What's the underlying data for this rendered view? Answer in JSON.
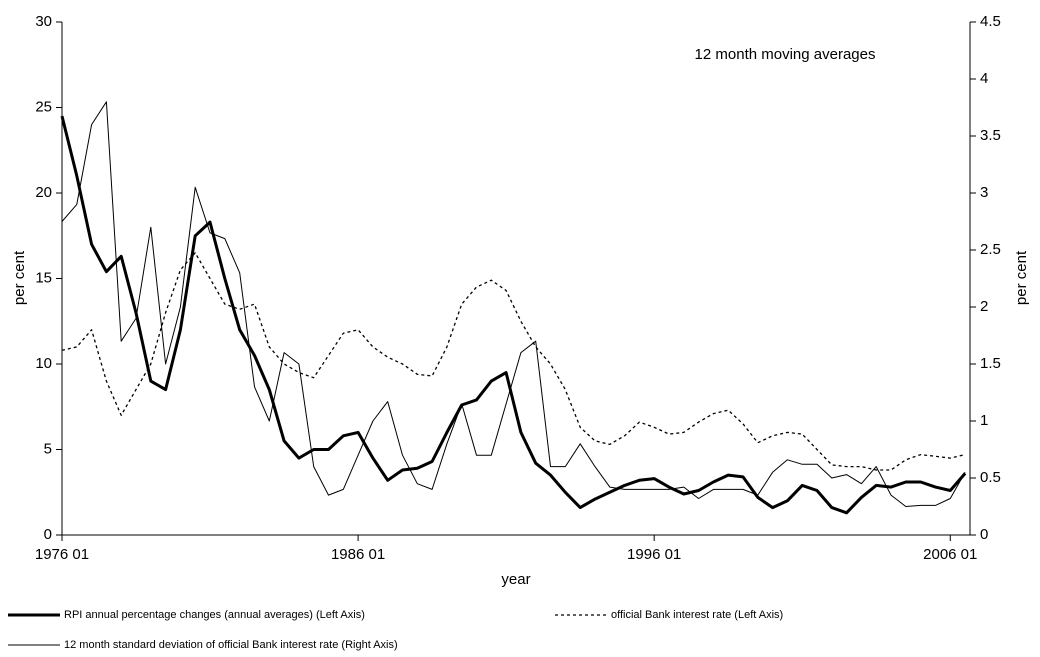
{
  "chart_data": {
    "type": "line",
    "annotation": "12 month moving averages",
    "xlabel": "year",
    "ylabel": "per cent",
    "y2label": "per cent",
    "x": [
      "1976 01",
      "1976 07",
      "1977 01",
      "1977 07",
      "1978 01",
      "1978 07",
      "1979 01",
      "1979 07",
      "1980 01",
      "1980 07",
      "1981 01",
      "1981 07",
      "1982 01",
      "1982 07",
      "1983 01",
      "1983 07",
      "1984 01",
      "1984 07",
      "1985 01",
      "1985 07",
      "1986 01",
      "1986 07",
      "1987 01",
      "1987 07",
      "1988 01",
      "1988 07",
      "1989 01",
      "1989 07",
      "1990 01",
      "1990 07",
      "1991 01",
      "1991 07",
      "1992 01",
      "1992 07",
      "1993 01",
      "1993 07",
      "1994 01",
      "1994 07",
      "1995 01",
      "1995 07",
      "1996 01",
      "1996 07",
      "1997 01",
      "1997 07",
      "1998 01",
      "1998 07",
      "1999 01",
      "1999 07",
      "2000 01",
      "2000 07",
      "2001 01",
      "2001 07",
      "2002 01",
      "2002 07",
      "2003 01",
      "2003 07",
      "2004 01",
      "2004 07",
      "2005 01",
      "2005 07",
      "2006 01",
      "2006 07"
    ],
    "xlim": [
      "1976 01",
      "2006 09"
    ],
    "xticks": [
      "1976 01",
      "1986 01",
      "1996 01",
      "2006 01"
    ],
    "ylim": [
      0,
      30
    ],
    "yticks": [
      0,
      5,
      10,
      15,
      20,
      25,
      30
    ],
    "y2lim": [
      0,
      4.5
    ],
    "y2ticks": [
      0,
      0.5,
      1,
      1.5,
      2,
      2.5,
      3,
      3.5,
      4,
      4.5
    ],
    "series": [
      {
        "name": "RPI annual percentage changes (annual averages) (Left Axis)",
        "color": "#000000",
        "style": "solid",
        "width": 3,
        "values": [
          24.5,
          21,
          17,
          15.4,
          16.3,
          13,
          9,
          8.5,
          12,
          17.5,
          18.3,
          15,
          12,
          10.5,
          8.5,
          5.5,
          4.5,
          5,
          5,
          5.8,
          6,
          4.5,
          3.2,
          3.8,
          3.9,
          4.3,
          6,
          7.6,
          7.9,
          9,
          9.5,
          6,
          4.2,
          3.5,
          2.5,
          1.6,
          2.1,
          2.5,
          2.9,
          3.2,
          3.3,
          2.8,
          2.4,
          2.6,
          3.1,
          3.5,
          3.4,
          2.2,
          1.6,
          2,
          2.9,
          2.6,
          1.6,
          1.3,
          2.2,
          2.9,
          2.8,
          3.1,
          3.1,
          2.8,
          2.6,
          3.6
        ]
      },
      {
        "name": "official Bank interest rate (Left Axis)",
        "color": "#000000",
        "style": "dotted",
        "width": 1.3,
        "values": [
          10.8,
          11,
          12,
          9,
          7,
          8.5,
          10,
          13,
          15.5,
          16.5,
          15,
          13.5,
          13.2,
          13.5,
          11,
          10,
          9.5,
          9.2,
          10.5,
          11.8,
          12,
          11,
          10.4,
          10,
          9.4,
          9.3,
          11,
          13.5,
          14.5,
          14.9,
          14.3,
          12.5,
          11,
          10,
          8.5,
          6.3,
          5.5,
          5.3,
          5.8,
          6.6,
          6.3,
          5.9,
          6,
          6.6,
          7.1,
          7.3,
          6.5,
          5.4,
          5.8,
          6,
          5.9,
          5,
          4.1,
          4,
          4,
          3.8,
          3.8,
          4.4,
          4.7,
          4.6,
          4.5,
          4.7
        ]
      },
      {
        "name": "12 month standard deviation of official Bank interest rate (Right Axis)",
        "color": "#000000",
        "style": "solid",
        "width": 1,
        "axis": "y2",
        "values": [
          2.75,
          2.9,
          3.6,
          3.8,
          1.7,
          1.9,
          2.7,
          1.5,
          2,
          3.05,
          2.65,
          2.6,
          2.3,
          1.3,
          1,
          1.6,
          1.5,
          0.6,
          0.35,
          0.4,
          0.7,
          1,
          1.17,
          0.7,
          0.45,
          0.4,
          0.8,
          1.15,
          0.7,
          0.7,
          1.15,
          1.6,
          1.7,
          0.6,
          0.6,
          0.8,
          0.6,
          0.42,
          0.4,
          0.4,
          0.4,
          0.4,
          0.42,
          0.32,
          0.4,
          0.4,
          0.4,
          0.35,
          0.55,
          0.66,
          0.62,
          0.62,
          0.5,
          0.53,
          0.45,
          0.6,
          0.35,
          0.25,
          0.26,
          0.26,
          0.32,
          0.55
        ]
      }
    ]
  }
}
